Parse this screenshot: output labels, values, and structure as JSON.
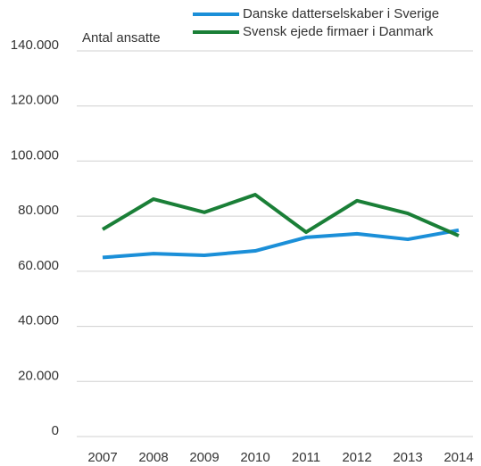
{
  "chart_data": {
    "type": "line",
    "y_label": "Antal ansatte",
    "categories": [
      "2007",
      "2008",
      "2009",
      "2010",
      "2011",
      "2012",
      "2013",
      "2014"
    ],
    "series": [
      {
        "name": "Danske datterselskaber i Sverige",
        "color": "#1b8fd8",
        "values": [
          65000,
          66400,
          65800,
          67400,
          72300,
          73600,
          71600,
          74900
        ]
      },
      {
        "name": "Svensk ejede firmaer i Danmark",
        "color": "#1a7f37",
        "values": [
          75200,
          86200,
          81400,
          87800,
          74200,
          85600,
          81000,
          72900
        ]
      }
    ],
    "ylim": [
      0,
      140000
    ],
    "yticks": [
      0,
      {
        "value": 20000,
        "label": "20.000"
      },
      {
        "value": 40000,
        "label": "40.000"
      },
      {
        "value": 60000,
        "label": "60.000"
      },
      {
        "value": 80000,
        "label": "80.000"
      },
      {
        "value": 100000,
        "label": "100.000"
      },
      {
        "value": 120000,
        "label": "120.000"
      },
      {
        "value": 140000,
        "label": "140.000"
      }
    ],
    "grid": true
  }
}
